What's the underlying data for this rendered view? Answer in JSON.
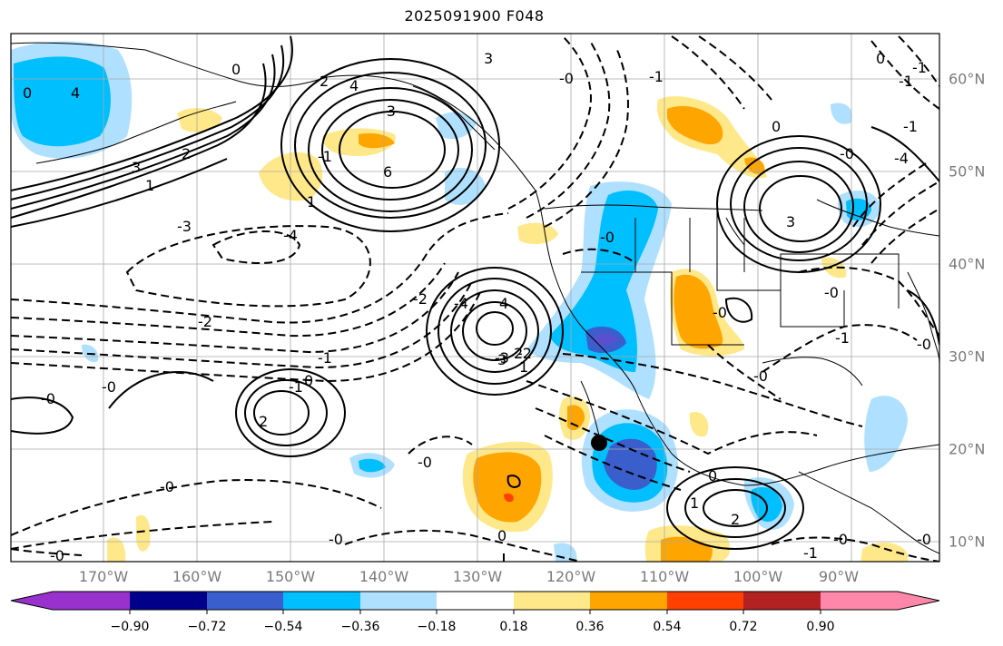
{
  "map": {
    "title": "2025091900 F048",
    "longitude_labels": [
      "170°W",
      "160°W",
      "150°W",
      "140°W",
      "130°W",
      "120°W",
      "110°W",
      "100°W",
      "90°W"
    ],
    "latitude_labels": [
      "60°N",
      "50°N",
      "40°N",
      "30°N",
      "20°N",
      "10°N"
    ],
    "contour_labels": [
      "0",
      "4",
      "3",
      "2",
      "1",
      "0",
      "2",
      "3",
      "-4",
      "-3",
      "-2",
      "-1",
      "6",
      "4",
      "1",
      "-3",
      "-1",
      "-2",
      "-4",
      "-3",
      "-2",
      "4",
      "3",
      "2",
      "-1",
      "-0",
      "-0",
      "-0",
      "1",
      "2",
      "0",
      "-0",
      "-0",
      "0",
      "-0",
      "-0",
      "-0",
      "-1",
      "-0",
      "-0",
      "-0",
      "0",
      "1",
      "2",
      "-1",
      "-0",
      "-1",
      "-4",
      "0",
      "-1",
      "3",
      "-0",
      "0",
      "-1",
      "-0",
      "-1",
      "-0"
    ],
    "marker": "typhoon-marker"
  },
  "colorbar": {
    "tick_labels": [
      "−0.90",
      "−0.72",
      "−0.54",
      "−0.36",
      "−0.18",
      "0.18",
      "0.36",
      "0.54",
      "0.72",
      "0.90"
    ],
    "colors": [
      "#9932cc",
      "#00008b",
      "#3a5fcd",
      "#00bfff",
      "#b0e0ff",
      "#ffffff",
      "#ffe88a",
      "#ffa500",
      "#ff4000",
      "#b22222",
      "#ff88aa"
    ]
  }
}
